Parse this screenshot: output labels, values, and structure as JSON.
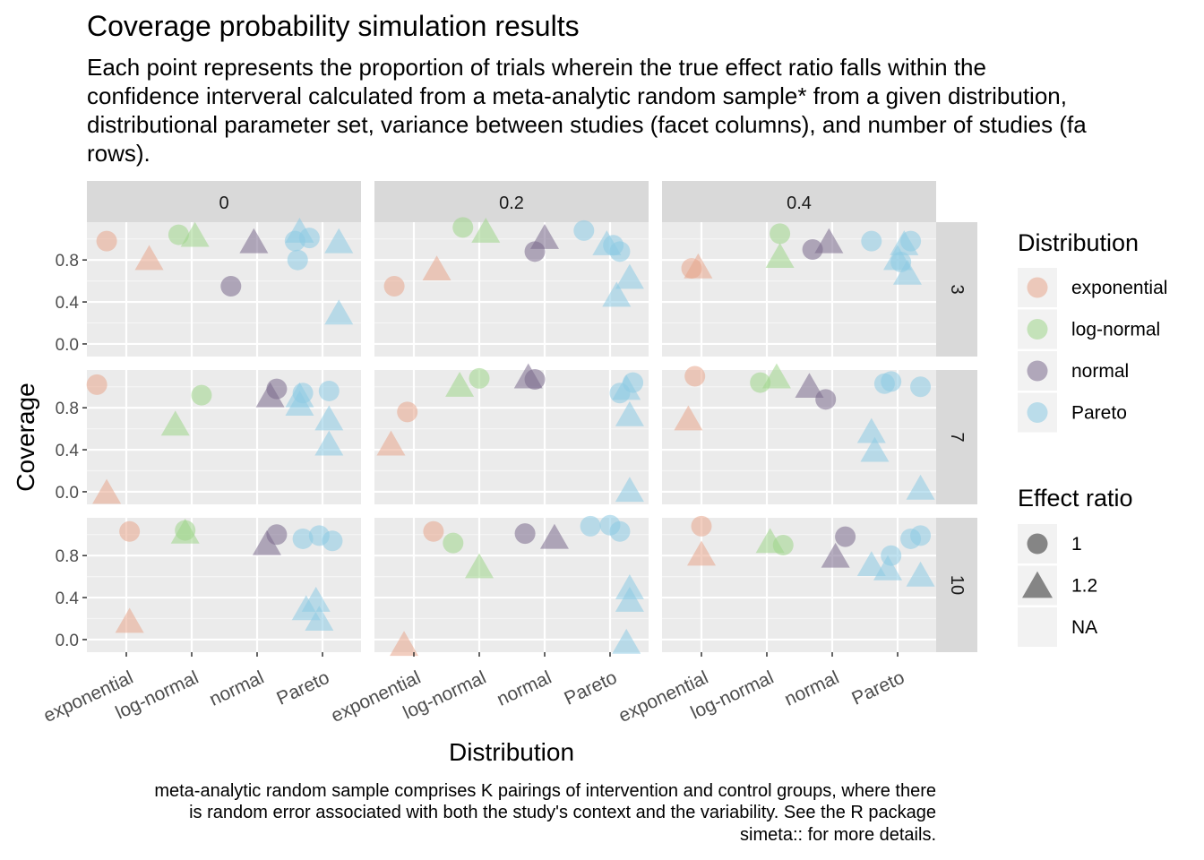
{
  "chart_data": {
    "type": "scatter",
    "title": "Coverage probability simulation results",
    "subtitle_lines": [
      "Each point represents the proportion of trials wherein the true effect ratio falls within the",
      "confidence interveral calculated from a meta-analytic random sample* from a given distribution,",
      "distributional parameter set, variance between studies (facet columns), and number of studies (fa",
      "rows)."
    ],
    "caption_lines": [
      "meta-analytic random sample comprises K pairings of intervention and control groups, where there",
      "is random error associated with both the study's context and the variability. See the R package",
      "simeta:: for more details."
    ],
    "xlabel": "Distribution",
    "ylabel": "Coverage",
    "x_categories": [
      "exponential",
      "log-normal",
      "normal",
      "Pareto"
    ],
    "y_ticks": [
      "0.0",
      "0.4",
      "0.8"
    ],
    "ylim": [
      -0.12,
      1.16
    ],
    "facet_cols": [
      "0",
      "0.2",
      "0.4"
    ],
    "facet_rows": [
      "3",
      "7",
      "10"
    ],
    "distribution_colors": {
      "exponential": "#e8a58c",
      "log-normal": "#9ed68a",
      "normal": "#7a6a8c",
      "Pareto": "#8ccbe4"
    },
    "legend": {
      "distribution_title": "Distribution",
      "distribution_items": [
        "exponential",
        "log-normal",
        "normal",
        "Pareto"
      ],
      "effect_title": "Effect ratio",
      "effect_items": [
        {
          "label": "1",
          "shape": "circle"
        },
        {
          "label": "1.2",
          "shape": "triangle"
        },
        {
          "label": "NA",
          "shape": "none"
        }
      ]
    },
    "points": [
      {
        "col": "0",
        "row": "3",
        "dist": "exponential",
        "jitter": -0.3,
        "coverage": 0.98,
        "shape": "circle"
      },
      {
        "col": "0",
        "row": "3",
        "dist": "exponential",
        "jitter": 0.35,
        "coverage": 0.8,
        "shape": "triangle"
      },
      {
        "col": "0",
        "row": "3",
        "dist": "log-normal",
        "jitter": -0.2,
        "coverage": 1.04,
        "shape": "circle"
      },
      {
        "col": "0",
        "row": "3",
        "dist": "log-normal",
        "jitter": 0.05,
        "coverage": 1.02,
        "shape": "triangle"
      },
      {
        "col": "0",
        "row": "3",
        "dist": "normal",
        "jitter": -0.4,
        "coverage": 0.55,
        "shape": "circle"
      },
      {
        "col": "0",
        "row": "3",
        "dist": "normal",
        "jitter": -0.05,
        "coverage": 0.96,
        "shape": "triangle"
      },
      {
        "col": "0",
        "row": "3",
        "dist": "Pareto",
        "jitter": -0.42,
        "coverage": 0.98,
        "shape": "circle"
      },
      {
        "col": "0",
        "row": "3",
        "dist": "Pareto",
        "jitter": -0.2,
        "coverage": 1.01,
        "shape": "circle"
      },
      {
        "col": "0",
        "row": "3",
        "dist": "Pareto",
        "jitter": -0.38,
        "coverage": 0.8,
        "shape": "circle"
      },
      {
        "col": "0",
        "row": "3",
        "dist": "Pareto",
        "jitter": -0.35,
        "coverage": 1.06,
        "shape": "triangle"
      },
      {
        "col": "0",
        "row": "3",
        "dist": "Pareto",
        "jitter": 0.25,
        "coverage": 0.96,
        "shape": "triangle"
      },
      {
        "col": "0",
        "row": "3",
        "dist": "Pareto",
        "jitter": 0.25,
        "coverage": 0.28,
        "shape": "triangle"
      },
      {
        "col": "0",
        "row": "7",
        "dist": "exponential",
        "jitter": -0.45,
        "coverage": 1.02,
        "shape": "circle"
      },
      {
        "col": "0",
        "row": "7",
        "dist": "exponential",
        "jitter": -0.3,
        "coverage": -0.02,
        "shape": "triangle"
      },
      {
        "col": "0",
        "row": "7",
        "dist": "log-normal",
        "jitter": 0.15,
        "coverage": 0.92,
        "shape": "circle"
      },
      {
        "col": "0",
        "row": "7",
        "dist": "log-normal",
        "jitter": -0.25,
        "coverage": 0.63,
        "shape": "triangle"
      },
      {
        "col": "0",
        "row": "7",
        "dist": "normal",
        "jitter": 0.3,
        "coverage": 0.98,
        "shape": "circle"
      },
      {
        "col": "0",
        "row": "7",
        "dist": "normal",
        "jitter": 0.2,
        "coverage": 0.9,
        "shape": "triangle"
      },
      {
        "col": "0",
        "row": "7",
        "dist": "Pareto",
        "jitter": -0.3,
        "coverage": 0.94,
        "shape": "circle"
      },
      {
        "col": "0",
        "row": "7",
        "dist": "Pareto",
        "jitter": 0.1,
        "coverage": 0.96,
        "shape": "circle"
      },
      {
        "col": "0",
        "row": "7",
        "dist": "Pareto",
        "jitter": -0.35,
        "coverage": 0.9,
        "shape": "triangle"
      },
      {
        "col": "0",
        "row": "7",
        "dist": "Pareto",
        "jitter": -0.35,
        "coverage": 0.82,
        "shape": "triangle"
      },
      {
        "col": "0",
        "row": "7",
        "dist": "Pareto",
        "jitter": 0.1,
        "coverage": 0.68,
        "shape": "triangle"
      },
      {
        "col": "0",
        "row": "7",
        "dist": "Pareto",
        "jitter": 0.1,
        "coverage": 0.44,
        "shape": "triangle"
      },
      {
        "col": "0",
        "row": "10",
        "dist": "exponential",
        "jitter": 0.05,
        "coverage": 1.03,
        "shape": "circle"
      },
      {
        "col": "0",
        "row": "10",
        "dist": "exponential",
        "jitter": 0.05,
        "coverage": 0.16,
        "shape": "triangle"
      },
      {
        "col": "0",
        "row": "10",
        "dist": "log-normal",
        "jitter": -0.1,
        "coverage": 1.04,
        "shape": "circle"
      },
      {
        "col": "0",
        "row": "10",
        "dist": "log-normal",
        "jitter": -0.1,
        "coverage": 1.01,
        "shape": "triangle"
      },
      {
        "col": "0",
        "row": "10",
        "dist": "normal",
        "jitter": 0.3,
        "coverage": 1.0,
        "shape": "circle"
      },
      {
        "col": "0",
        "row": "10",
        "dist": "normal",
        "jitter": 0.15,
        "coverage": 0.9,
        "shape": "triangle"
      },
      {
        "col": "0",
        "row": "10",
        "dist": "Pareto",
        "jitter": -0.3,
        "coverage": 0.96,
        "shape": "circle"
      },
      {
        "col": "0",
        "row": "10",
        "dist": "Pareto",
        "jitter": -0.05,
        "coverage": 0.99,
        "shape": "circle"
      },
      {
        "col": "0",
        "row": "10",
        "dist": "Pareto",
        "jitter": 0.15,
        "coverage": 0.94,
        "shape": "circle"
      },
      {
        "col": "0",
        "row": "10",
        "dist": "Pareto",
        "jitter": -0.1,
        "coverage": 0.36,
        "shape": "triangle"
      },
      {
        "col": "0",
        "row": "10",
        "dist": "Pareto",
        "jitter": -0.25,
        "coverage": 0.28,
        "shape": "triangle"
      },
      {
        "col": "0",
        "row": "10",
        "dist": "Pareto",
        "jitter": -0.05,
        "coverage": 0.18,
        "shape": "triangle"
      },
      {
        "col": "0.2",
        "row": "3",
        "dist": "exponential",
        "jitter": -0.3,
        "coverage": 0.55,
        "shape": "circle"
      },
      {
        "col": "0.2",
        "row": "3",
        "dist": "exponential",
        "jitter": 0.35,
        "coverage": 0.7,
        "shape": "triangle"
      },
      {
        "col": "0.2",
        "row": "3",
        "dist": "log-normal",
        "jitter": -0.25,
        "coverage": 1.11,
        "shape": "circle"
      },
      {
        "col": "0.2",
        "row": "3",
        "dist": "log-normal",
        "jitter": 0.1,
        "coverage": 1.06,
        "shape": "triangle"
      },
      {
        "col": "0.2",
        "row": "3",
        "dist": "normal",
        "jitter": -0.15,
        "coverage": 0.88,
        "shape": "circle"
      },
      {
        "col": "0.2",
        "row": "3",
        "dist": "normal",
        "jitter": 0.0,
        "coverage": 1.0,
        "shape": "triangle"
      },
      {
        "col": "0.2",
        "row": "3",
        "dist": "Pareto",
        "jitter": -0.4,
        "coverage": 1.08,
        "shape": "circle"
      },
      {
        "col": "0.2",
        "row": "3",
        "dist": "Pareto",
        "jitter": 0.05,
        "coverage": 0.94,
        "shape": "circle"
      },
      {
        "col": "0.2",
        "row": "3",
        "dist": "Pareto",
        "jitter": 0.15,
        "coverage": 0.88,
        "shape": "circle"
      },
      {
        "col": "0.2",
        "row": "3",
        "dist": "Pareto",
        "jitter": -0.05,
        "coverage": 0.94,
        "shape": "triangle"
      },
      {
        "col": "0.2",
        "row": "3",
        "dist": "Pareto",
        "jitter": 0.3,
        "coverage": 0.62,
        "shape": "triangle"
      },
      {
        "col": "0.2",
        "row": "3",
        "dist": "Pareto",
        "jitter": 0.1,
        "coverage": 0.45,
        "shape": "triangle"
      },
      {
        "col": "0.2",
        "row": "7",
        "dist": "exponential",
        "jitter": -0.1,
        "coverage": 0.76,
        "shape": "circle"
      },
      {
        "col": "0.2",
        "row": "7",
        "dist": "exponential",
        "jitter": -0.35,
        "coverage": 0.44,
        "shape": "triangle"
      },
      {
        "col": "0.2",
        "row": "7",
        "dist": "log-normal",
        "jitter": 0.0,
        "coverage": 1.08,
        "shape": "circle"
      },
      {
        "col": "0.2",
        "row": "7",
        "dist": "log-normal",
        "jitter": -0.3,
        "coverage": 1.0,
        "shape": "triangle"
      },
      {
        "col": "0.2",
        "row": "7",
        "dist": "normal",
        "jitter": -0.15,
        "coverage": 1.07,
        "shape": "circle"
      },
      {
        "col": "0.2",
        "row": "7",
        "dist": "normal",
        "jitter": -0.25,
        "coverage": 1.08,
        "shape": "triangle"
      },
      {
        "col": "0.2",
        "row": "7",
        "dist": "Pareto",
        "jitter": 0.15,
        "coverage": 0.94,
        "shape": "circle"
      },
      {
        "col": "0.2",
        "row": "7",
        "dist": "Pareto",
        "jitter": 0.35,
        "coverage": 1.04,
        "shape": "circle"
      },
      {
        "col": "0.2",
        "row": "7",
        "dist": "Pareto",
        "jitter": 0.25,
        "coverage": 0.97,
        "shape": "triangle"
      },
      {
        "col": "0.2",
        "row": "7",
        "dist": "Pareto",
        "jitter": 0.3,
        "coverage": 0.72,
        "shape": "triangle"
      },
      {
        "col": "0.2",
        "row": "7",
        "dist": "Pareto",
        "jitter": 0.3,
        "coverage": 0.0,
        "shape": "triangle"
      },
      {
        "col": "0.2",
        "row": "10",
        "dist": "exponential",
        "jitter": 0.3,
        "coverage": 1.03,
        "shape": "circle"
      },
      {
        "col": "0.2",
        "row": "10",
        "dist": "exponential",
        "jitter": -0.15,
        "coverage": -0.06,
        "shape": "triangle"
      },
      {
        "col": "0.2",
        "row": "10",
        "dist": "log-normal",
        "jitter": -0.4,
        "coverage": 0.92,
        "shape": "circle"
      },
      {
        "col": "0.2",
        "row": "10",
        "dist": "log-normal",
        "jitter": 0.0,
        "coverage": 0.68,
        "shape": "triangle"
      },
      {
        "col": "0.2",
        "row": "10",
        "dist": "normal",
        "jitter": -0.3,
        "coverage": 1.01,
        "shape": "circle"
      },
      {
        "col": "0.2",
        "row": "10",
        "dist": "normal",
        "jitter": 0.15,
        "coverage": 0.96,
        "shape": "triangle"
      },
      {
        "col": "0.2",
        "row": "10",
        "dist": "Pareto",
        "jitter": -0.3,
        "coverage": 1.08,
        "shape": "circle"
      },
      {
        "col": "0.2",
        "row": "10",
        "dist": "Pareto",
        "jitter": 0.0,
        "coverage": 1.09,
        "shape": "circle"
      },
      {
        "col": "0.2",
        "row": "10",
        "dist": "Pareto",
        "jitter": 0.15,
        "coverage": 1.03,
        "shape": "circle"
      },
      {
        "col": "0.2",
        "row": "10",
        "dist": "Pareto",
        "jitter": 0.3,
        "coverage": 0.48,
        "shape": "triangle"
      },
      {
        "col": "0.2",
        "row": "10",
        "dist": "Pareto",
        "jitter": 0.3,
        "coverage": 0.36,
        "shape": "triangle"
      },
      {
        "col": "0.2",
        "row": "10",
        "dist": "Pareto",
        "jitter": 0.25,
        "coverage": -0.04,
        "shape": "triangle"
      },
      {
        "col": "0.4",
        "row": "3",
        "dist": "exponential",
        "jitter": -0.15,
        "coverage": 0.72,
        "shape": "circle"
      },
      {
        "col": "0.4",
        "row": "3",
        "dist": "exponential",
        "jitter": -0.05,
        "coverage": 0.72,
        "shape": "triangle"
      },
      {
        "col": "0.4",
        "row": "3",
        "dist": "log-normal",
        "jitter": 0.2,
        "coverage": 1.05,
        "shape": "circle"
      },
      {
        "col": "0.4",
        "row": "3",
        "dist": "log-normal",
        "jitter": 0.2,
        "coverage": 0.82,
        "shape": "triangle"
      },
      {
        "col": "0.4",
        "row": "3",
        "dist": "normal",
        "jitter": -0.3,
        "coverage": 0.9,
        "shape": "circle"
      },
      {
        "col": "0.4",
        "row": "3",
        "dist": "normal",
        "jitter": -0.05,
        "coverage": 0.96,
        "shape": "triangle"
      },
      {
        "col": "0.4",
        "row": "3",
        "dist": "Pareto",
        "jitter": -0.4,
        "coverage": 0.98,
        "shape": "circle"
      },
      {
        "col": "0.4",
        "row": "3",
        "dist": "Pareto",
        "jitter": 0.2,
        "coverage": 0.98,
        "shape": "circle"
      },
      {
        "col": "0.4",
        "row": "3",
        "dist": "Pareto",
        "jitter": 0.05,
        "coverage": 0.78,
        "shape": "circle"
      },
      {
        "col": "0.4",
        "row": "3",
        "dist": "Pareto",
        "jitter": 0.1,
        "coverage": 0.94,
        "shape": "triangle"
      },
      {
        "col": "0.4",
        "row": "3",
        "dist": "Pareto",
        "jitter": 0.0,
        "coverage": 0.8,
        "shape": "triangle"
      },
      {
        "col": "0.4",
        "row": "3",
        "dist": "Pareto",
        "jitter": 0.15,
        "coverage": 0.66,
        "shape": "triangle"
      },
      {
        "col": "0.4",
        "row": "7",
        "dist": "exponential",
        "jitter": -0.1,
        "coverage": 1.1,
        "shape": "circle"
      },
      {
        "col": "0.4",
        "row": "7",
        "dist": "exponential",
        "jitter": -0.2,
        "coverage": 0.68,
        "shape": "triangle"
      },
      {
        "col": "0.4",
        "row": "7",
        "dist": "log-normal",
        "jitter": -0.1,
        "coverage": 1.04,
        "shape": "circle"
      },
      {
        "col": "0.4",
        "row": "7",
        "dist": "log-normal",
        "jitter": 0.15,
        "coverage": 1.08,
        "shape": "triangle"
      },
      {
        "col": "0.4",
        "row": "7",
        "dist": "normal",
        "jitter": -0.1,
        "coverage": 0.88,
        "shape": "circle"
      },
      {
        "col": "0.4",
        "row": "7",
        "dist": "normal",
        "jitter": -0.35,
        "coverage": 0.99,
        "shape": "triangle"
      },
      {
        "col": "0.4",
        "row": "7",
        "dist": "Pareto",
        "jitter": -0.2,
        "coverage": 1.03,
        "shape": "circle"
      },
      {
        "col": "0.4",
        "row": "7",
        "dist": "Pareto",
        "jitter": -0.1,
        "coverage": 1.05,
        "shape": "circle"
      },
      {
        "col": "0.4",
        "row": "7",
        "dist": "Pareto",
        "jitter": 0.35,
        "coverage": 1.0,
        "shape": "circle"
      },
      {
        "col": "0.4",
        "row": "7",
        "dist": "Pareto",
        "jitter": -0.4,
        "coverage": 0.56,
        "shape": "triangle"
      },
      {
        "col": "0.4",
        "row": "7",
        "dist": "Pareto",
        "jitter": -0.35,
        "coverage": 0.38,
        "shape": "triangle"
      },
      {
        "col": "0.4",
        "row": "7",
        "dist": "Pareto",
        "jitter": 0.35,
        "coverage": 0.02,
        "shape": "triangle"
      },
      {
        "col": "0.4",
        "row": "10",
        "dist": "exponential",
        "jitter": 0.0,
        "coverage": 1.08,
        "shape": "circle"
      },
      {
        "col": "0.4",
        "row": "10",
        "dist": "exponential",
        "jitter": 0.0,
        "coverage": 0.8,
        "shape": "triangle"
      },
      {
        "col": "0.4",
        "row": "10",
        "dist": "log-normal",
        "jitter": 0.25,
        "coverage": 0.9,
        "shape": "circle"
      },
      {
        "col": "0.4",
        "row": "10",
        "dist": "log-normal",
        "jitter": 0.05,
        "coverage": 0.92,
        "shape": "triangle"
      },
      {
        "col": "0.4",
        "row": "10",
        "dist": "normal",
        "jitter": 0.2,
        "coverage": 0.98,
        "shape": "circle"
      },
      {
        "col": "0.4",
        "row": "10",
        "dist": "normal",
        "jitter": 0.05,
        "coverage": 0.78,
        "shape": "triangle"
      },
      {
        "col": "0.4",
        "row": "10",
        "dist": "Pareto",
        "jitter": 0.2,
        "coverage": 0.96,
        "shape": "circle"
      },
      {
        "col": "0.4",
        "row": "10",
        "dist": "Pareto",
        "jitter": 0.35,
        "coverage": 0.99,
        "shape": "circle"
      },
      {
        "col": "0.4",
        "row": "10",
        "dist": "Pareto",
        "jitter": -0.1,
        "coverage": 0.8,
        "shape": "circle"
      },
      {
        "col": "0.4",
        "row": "10",
        "dist": "Pareto",
        "jitter": -0.4,
        "coverage": 0.7,
        "shape": "triangle"
      },
      {
        "col": "0.4",
        "row": "10",
        "dist": "Pareto",
        "jitter": -0.15,
        "coverage": 0.66,
        "shape": "triangle"
      },
      {
        "col": "0.4",
        "row": "10",
        "dist": "Pareto",
        "jitter": 0.35,
        "coverage": 0.6,
        "shape": "triangle"
      }
    ]
  }
}
